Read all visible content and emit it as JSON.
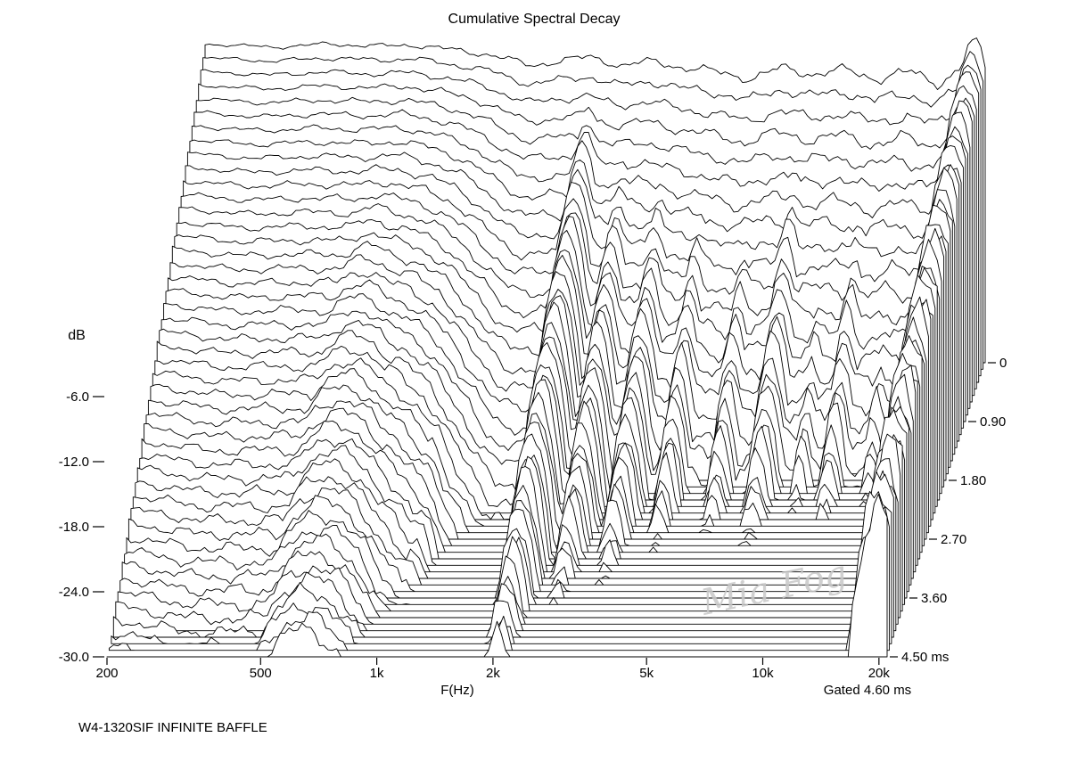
{
  "caption": "W4-1320SIF INFINITE BAFFLE",
  "watermark": "Mia Fog",
  "colors": {
    "ink": "#000000",
    "background": "#ffffff",
    "watermark": "#c8c8c8"
  },
  "chart_data": {
    "type": "area",
    "subtype": "cumulative-spectral-decay-3d-waterfall",
    "title": "Cumulative Spectral Decay",
    "xlabel": "F(Hz)",
    "ylabel": "dB",
    "gate_label": "Gated 4.60 ms",
    "freq_range": [
      200,
      21000
    ],
    "x_ticks": [
      "200",
      "500",
      "1k",
      "2k",
      "5k",
      "10k",
      "20k"
    ],
    "x_tick_values": [
      200,
      500,
      1000,
      2000,
      5000,
      10000,
      20000
    ],
    "y_tick_labels": [
      "-6.0",
      "-12.0",
      "-18.0",
      "-24.0",
      "-30.0"
    ],
    "y_tick_values": [
      -6,
      -12,
      -18,
      -24,
      -30
    ],
    "ylim": [
      -30,
      0
    ],
    "time_ticks": [
      "0",
      "0.90",
      "1.80",
      "2.70",
      "3.60",
      "4.50 ms"
    ],
    "time_tick_values": [
      0,
      0.9,
      1.8,
      2.7,
      3.6,
      4.5
    ],
    "time_range_ms": [
      0,
      4.5
    ],
    "slice_step_ms": 0.1,
    "grid": false,
    "legend": false,
    "response_db": {
      "f": [
        200,
        300,
        420,
        560,
        700,
        900,
        1100,
        1400,
        1700,
        2000,
        2400,
        2900,
        3500,
        4300,
        5200,
        6300,
        7600,
        9200,
        11000,
        13500,
        16000,
        18000,
        19600,
        21000
      ],
      "db": [
        -0.6,
        -0.9,
        -0.6,
        -0.8,
        -0.7,
        -1.2,
        -1.6,
        -2.6,
        -2.1,
        -1.8,
        -2.6,
        -2.2,
        -2.8,
        -3.2,
        -3.8,
        -2.8,
        -3.4,
        -3.0,
        -3.8,
        -3.2,
        -4.2,
        -3.0,
        -1.0,
        -6.0
      ]
    },
    "decay_db_per_ms": {
      "f": [
        200,
        300,
        420,
        560,
        700,
        850,
        1000,
        1200,
        1500,
        1900,
        2400,
        3000,
        3800,
        4800,
        6000,
        7500,
        9500,
        12000,
        15000,
        17500,
        19000,
        20000,
        21000
      ],
      "rate": [
        6.6,
        6.8,
        6.9,
        6.8,
        6.7,
        7.0,
        7.8,
        9.5,
        11.5,
        12.0,
        12.3,
        12.6,
        13.0,
        13.4,
        13.8,
        14.0,
        14.0,
        14.2,
        14.0,
        12.5,
        10.0,
        8.0,
        8.5
      ]
    },
    "resonance_modes": [
      {
        "f": 640,
        "peak_db": -1.5,
        "decay_db_per_ms": 5.8,
        "log_width": 0.16
      },
      {
        "f": 1050,
        "peak_db": -4.5,
        "decay_db_per_ms": 7.0,
        "log_width": 0.06
      },
      {
        "f": 2050,
        "peak_db": -3.0,
        "decay_db_per_ms": 5.6,
        "log_width": 0.045
      },
      {
        "f": 2600,
        "peak_db": -5.0,
        "decay_db_per_ms": 6.8,
        "log_width": 0.04
      },
      {
        "f": 3300,
        "peak_db": -5.5,
        "decay_db_per_ms": 7.4,
        "log_width": 0.04
      },
      {
        "f": 4200,
        "peak_db": -6.0,
        "decay_db_per_ms": 8.4,
        "log_width": 0.035
      },
      {
        "f": 5600,
        "peak_db": -6.5,
        "decay_db_per_ms": 9.0,
        "log_width": 0.035
      },
      {
        "f": 7200,
        "peak_db": -5.0,
        "decay_db_per_ms": 9.2,
        "log_width": 0.04
      },
      {
        "f": 9000,
        "peak_db": -7.0,
        "decay_db_per_ms": 10.0,
        "log_width": 0.03
      },
      {
        "f": 10800,
        "peak_db": -6.0,
        "decay_db_per_ms": 9.8,
        "log_width": 0.035
      },
      {
        "f": 13500,
        "peak_db": -7.0,
        "decay_db_per_ms": 10.5,
        "log_width": 0.03
      },
      {
        "f": 16000,
        "peak_db": -8.0,
        "decay_db_per_ms": 11.0,
        "log_width": 0.03
      },
      {
        "f": 19600,
        "peak_db": -0.5,
        "decay_db_per_ms": 3.6,
        "log_width": 0.05
      }
    ],
    "noise_texture": {
      "base": 0.25,
      "time_gain": 0.13,
      "lf_base": 0.35,
      "hf_gain": 1.05
    }
  }
}
